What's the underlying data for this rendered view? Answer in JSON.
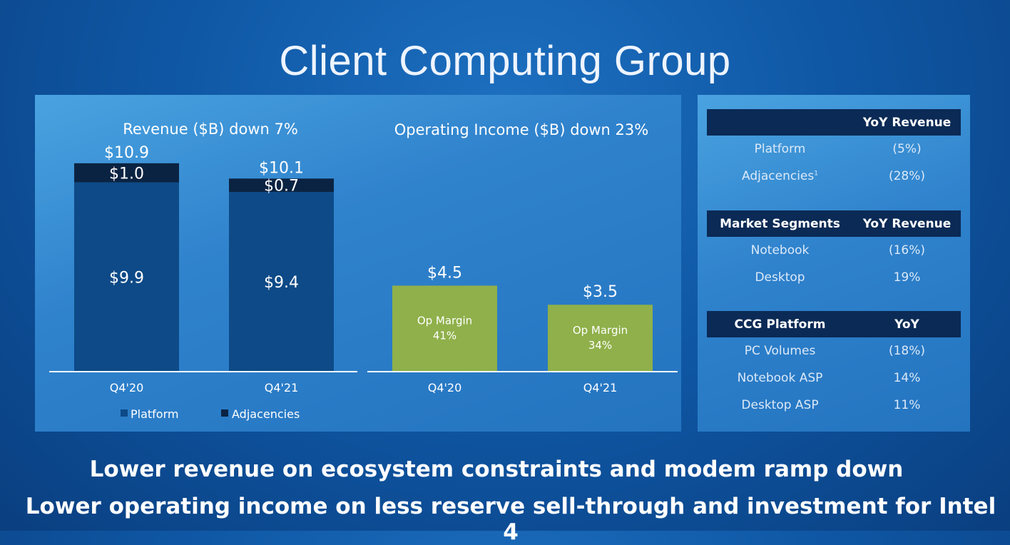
{
  "title": "Client Computing Group",
  "colors": {
    "platform": "#0d4a87",
    "adjacencies": "#0b2342",
    "op_income": "#8fb04a",
    "table_header": "#0b2a55"
  },
  "chart_data": [
    {
      "type": "bar",
      "stacked": true,
      "title": "Revenue ($B) down 7%",
      "categories": [
        "Q4'20",
        "Q4'21"
      ],
      "series": [
        {
          "name": "Platform",
          "values": [
            9.9,
            9.4
          ],
          "labels": [
            "$9.9",
            "$9.4"
          ]
        },
        {
          "name": "Adjacencies",
          "values": [
            1.0,
            0.7
          ],
          "labels": [
            "$1.0",
            "$0.7"
          ]
        }
      ],
      "totals": [
        10.9,
        10.1
      ],
      "total_labels": [
        "$10.9",
        "$10.1"
      ],
      "legend": [
        "Platform",
        "Adjacencies"
      ],
      "legend_position": "bottom"
    },
    {
      "type": "bar",
      "title": "Operating Income ($B) down 23%",
      "categories": [
        "Q4'20",
        "Q4'21"
      ],
      "values": [
        4.5,
        3.5
      ],
      "value_labels": [
        "$4.5",
        "$3.5"
      ],
      "inner_labels": [
        [
          "Op Margin",
          "41%"
        ],
        [
          "Op Margin",
          "34%"
        ]
      ]
    }
  ],
  "tables": [
    {
      "header": [
        "",
        "YoY Revenue"
      ],
      "rows": [
        [
          "Platform",
          "(5%)"
        ],
        [
          "Adjacencies",
          "(28%)"
        ]
      ]
    },
    {
      "header": [
        "Market Segments",
        "YoY Revenue"
      ],
      "rows": [
        [
          "Notebook",
          "(16%)"
        ],
        [
          "Desktop",
          "19%"
        ]
      ]
    },
    {
      "header": [
        "CCG Platform",
        "YoY"
      ],
      "rows": [
        [
          "PC Volumes",
          "(18%)"
        ],
        [
          "Notebook ASP",
          "14%"
        ],
        [
          "Desktop ASP",
          "11%"
        ]
      ]
    }
  ],
  "footnote_marker": "1",
  "footer": [
    "Lower revenue on ecosystem constraints and modem ramp down",
    "Lower operating income on less reserve sell-through and investment for Intel 4"
  ]
}
